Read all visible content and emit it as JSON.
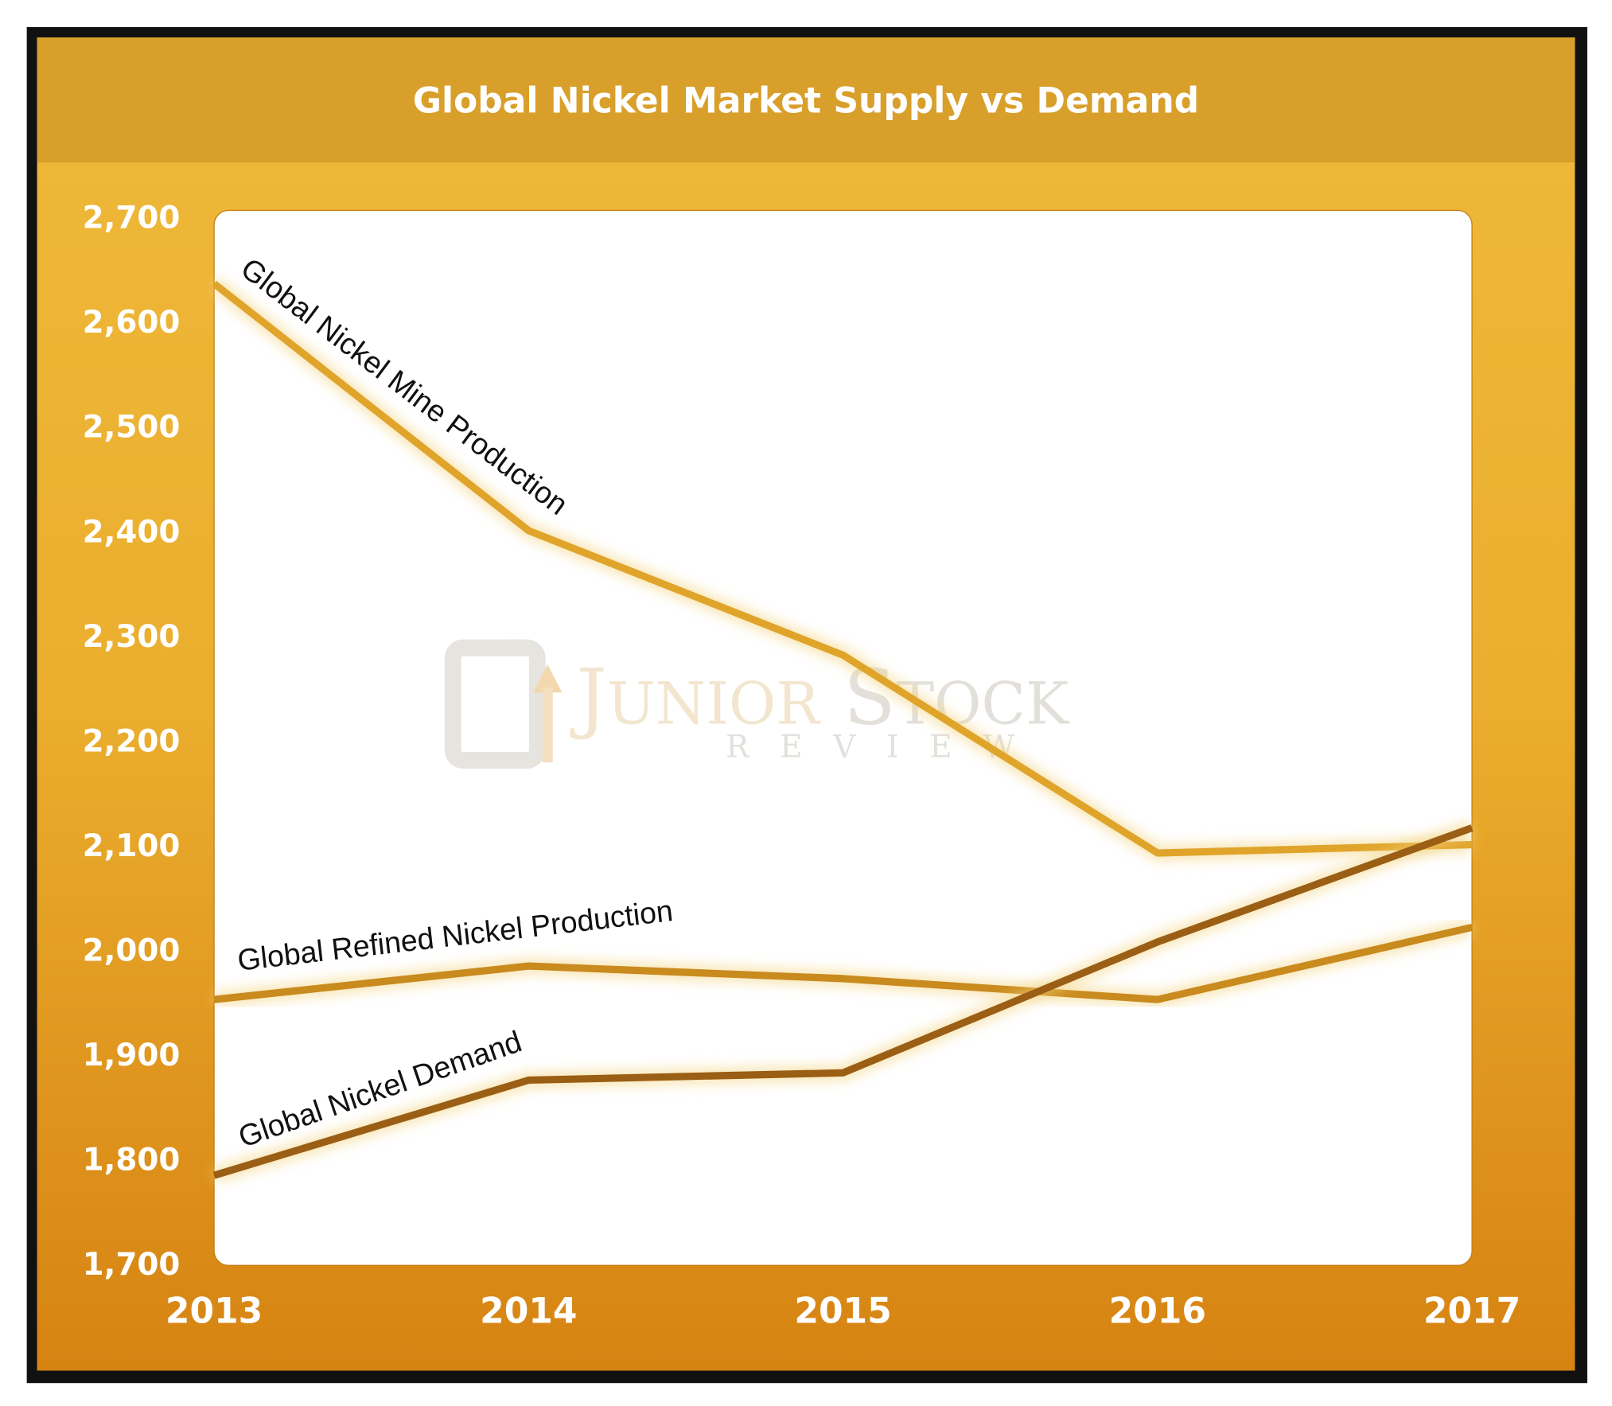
{
  "chart_data": {
    "type": "line",
    "title": "Global Nickel Market Supply vs Demand",
    "xlabel": "",
    "ylabel": "",
    "x": [
      "2013",
      "2014",
      "2015",
      "2016",
      "2017"
    ],
    "ylim": [
      1700,
      2700
    ],
    "yticks": [
      1700,
      1800,
      1900,
      2000,
      2100,
      2200,
      2300,
      2400,
      2500,
      2600,
      2700
    ],
    "ytick_labels": [
      "1,700",
      "1,800",
      "1,900",
      "2,000",
      "2,100",
      "2,200",
      "2,300",
      "2,400",
      "2,500",
      "2,600",
      "2,700"
    ],
    "grid": false,
    "series": [
      {
        "name": "Global Nickel Mine Production",
        "values": [
          2636,
          2400,
          2281,
          2092,
          2100
        ],
        "color": "#e0a42a"
      },
      {
        "name": "Global Refined Nickel Production",
        "values": [
          1952,
          1984,
          1972,
          1952,
          2021
        ],
        "color": "#c98a1e"
      },
      {
        "name": "Global Nickel Demand",
        "values": [
          1784,
          1875,
          1882,
          2007,
          2116
        ],
        "color": "#9a5e14"
      }
    ]
  },
  "watermark": {
    "line1": "JUNIOR STOCK",
    "line2": "R E V I E W"
  },
  "colors": {
    "header": "#d99f2b",
    "bg_top": "#efb93a",
    "bg_bottom": "#d68312",
    "frame": "#111111"
  }
}
